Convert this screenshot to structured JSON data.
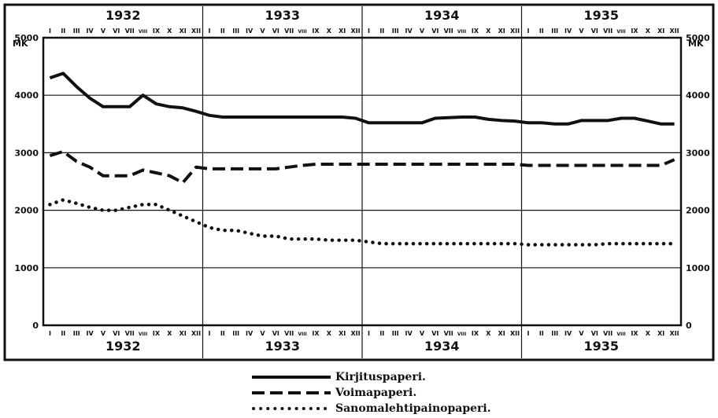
{
  "chart_data": {
    "type": "line",
    "yaxis_unit_label": "MK",
    "ylim": [
      0,
      5000
    ],
    "yticks": [
      0,
      1000,
      2000,
      3000,
      4000,
      5000
    ],
    "year_labels": [
      "1932",
      "1933",
      "1934",
      "1935"
    ],
    "month_labels": [
      "I",
      "II",
      "III",
      "IV",
      "V",
      "VI",
      "VII",
      "VIII",
      "IX",
      "X",
      "XI",
      "XII"
    ],
    "grid": true,
    "series": [
      {
        "name": "Kirjituspaperi.",
        "style": "solid",
        "values": [
          4300,
          4380,
          4150,
          3950,
          3800,
          3800,
          3800,
          4000,
          3850,
          3800,
          3780,
          3720,
          3650,
          3620,
          3620,
          3620,
          3620,
          3620,
          3620,
          3620,
          3620,
          3620,
          3620,
          3600,
          3520,
          3520,
          3520,
          3520,
          3520,
          3600,
          3610,
          3620,
          3620,
          3580,
          3560,
          3550,
          3520,
          3520,
          3500,
          3500,
          3560,
          3560,
          3560,
          3600,
          3600,
          3550,
          3500,
          3500
        ]
      },
      {
        "name": "Voimapaperi.",
        "style": "dashed",
        "values": [
          2950,
          3020,
          2850,
          2750,
          2600,
          2600,
          2600,
          2700,
          2650,
          2600,
          2480,
          2750,
          2720,
          2720,
          2720,
          2720,
          2720,
          2720,
          2750,
          2780,
          2800,
          2800,
          2800,
          2800,
          2800,
          2800,
          2800,
          2800,
          2800,
          2800,
          2800,
          2800,
          2800,
          2800,
          2800,
          2800,
          2780,
          2780,
          2780,
          2780,
          2780,
          2780,
          2780,
          2780,
          2780,
          2780,
          2780,
          2880
        ]
      },
      {
        "name": "Sanomalehtipainopaperi.",
        "style": "dotted",
        "values": [
          2100,
          2180,
          2120,
          2050,
          2000,
          2000,
          2050,
          2100,
          2100,
          2000,
          1900,
          1800,
          1700,
          1650,
          1650,
          1600,
          1550,
          1550,
          1500,
          1500,
          1500,
          1480,
          1480,
          1480,
          1450,
          1420,
          1420,
          1420,
          1420,
          1420,
          1420,
          1420,
          1420,
          1420,
          1420,
          1420,
          1400,
          1400,
          1400,
          1400,
          1400,
          1400,
          1420,
          1420,
          1420,
          1420,
          1420,
          1420
        ]
      }
    ]
  },
  "legend": {
    "items": [
      {
        "label": "Kirjituspaperi."
      },
      {
        "label": "Voimapaperi."
      },
      {
        "label": "Sanomalehtipainopaperi."
      }
    ]
  }
}
